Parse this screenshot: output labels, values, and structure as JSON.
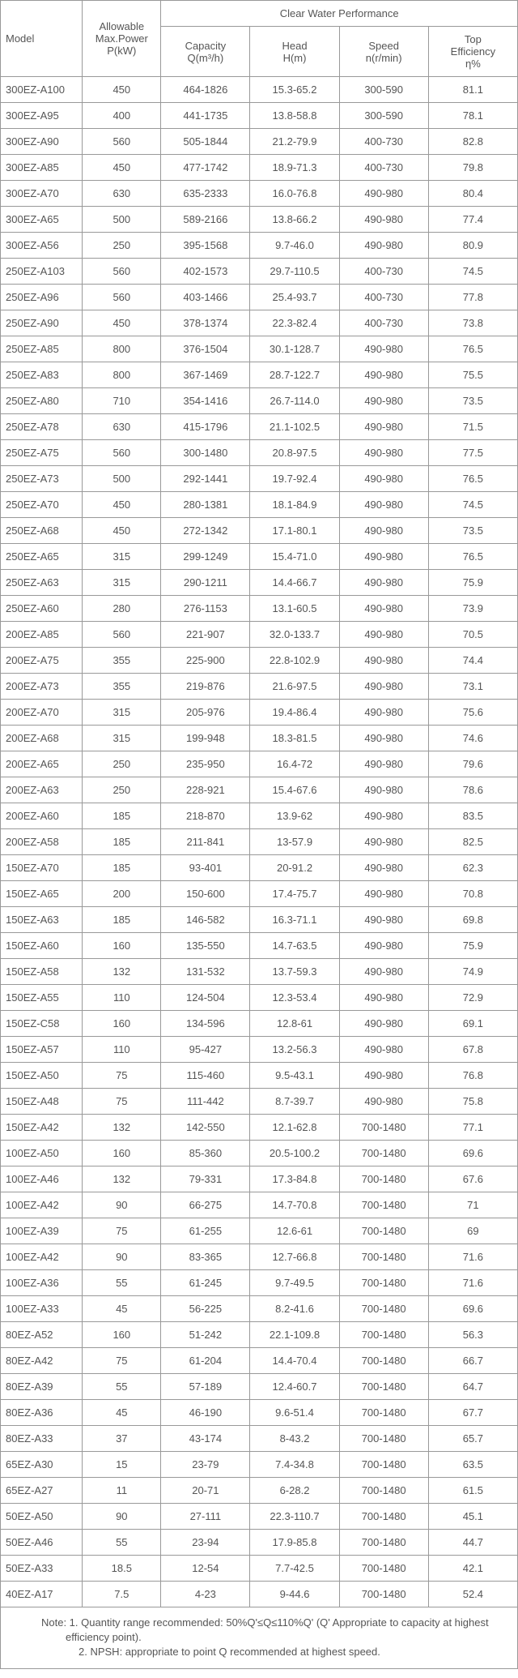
{
  "headers": {
    "model": "Model",
    "allowable": "Allowable\nMax.Power\nP(kW)",
    "perf_group": "Clear Water Performance",
    "capacity": "Capacity\nQ(m³/h)",
    "head": "Head\nH(m)",
    "speed": "Speed\nn(r/min)",
    "eff": "Top\nEfficiency\nη%"
  },
  "rows": [
    [
      "300EZ-A100",
      "450",
      "464-1826",
      "15.3-65.2",
      "300-590",
      "81.1"
    ],
    [
      "300EZ-A95",
      "400",
      "441-1735",
      "13.8-58.8",
      "300-590",
      "78.1"
    ],
    [
      "300EZ-A90",
      "560",
      "505-1844",
      "21.2-79.9",
      "400-730",
      "82.8"
    ],
    [
      "300EZ-A85",
      "450",
      "477-1742",
      "18.9-71.3",
      "400-730",
      "79.8"
    ],
    [
      "300EZ-A70",
      "630",
      "635-2333",
      "16.0-76.8",
      "490-980",
      "80.4"
    ],
    [
      "300EZ-A65",
      "500",
      "589-2166",
      "13.8-66.2",
      "490-980",
      "77.4"
    ],
    [
      "300EZ-A56",
      "250",
      "395-1568",
      "9.7-46.0",
      "490-980",
      "80.9"
    ],
    [
      "250EZ-A103",
      "560",
      "402-1573",
      "29.7-110.5",
      "400-730",
      "74.5"
    ],
    [
      "250EZ-A96",
      "560",
      "403-1466",
      "25.4-93.7",
      "400-730",
      "77.8"
    ],
    [
      "250EZ-A90",
      "450",
      "378-1374",
      "22.3-82.4",
      "400-730",
      "73.8"
    ],
    [
      "250EZ-A85",
      "800",
      "376-1504",
      "30.1-128.7",
      "490-980",
      "76.5"
    ],
    [
      "250EZ-A83",
      "800",
      "367-1469",
      "28.7-122.7",
      "490-980",
      "75.5"
    ],
    [
      "250EZ-A80",
      "710",
      "354-1416",
      "26.7-114.0",
      "490-980",
      "73.5"
    ],
    [
      "250EZ-A78",
      "630",
      "415-1796",
      "21.1-102.5",
      "490-980",
      "71.5"
    ],
    [
      "250EZ-A75",
      "560",
      "300-1480",
      "20.8-97.5",
      "490-980",
      "77.5"
    ],
    [
      "250EZ-A73",
      "500",
      "292-1441",
      "19.7-92.4",
      "490-980",
      "76.5"
    ],
    [
      "250EZ-A70",
      "450",
      "280-1381",
      "18.1-84.9",
      "490-980",
      "74.5"
    ],
    [
      "250EZ-A68",
      "450",
      "272-1342",
      "17.1-80.1",
      "490-980",
      "73.5"
    ],
    [
      "250EZ-A65",
      "315",
      "299-1249",
      "15.4-71.0",
      "490-980",
      "76.5"
    ],
    [
      "250EZ-A63",
      "315",
      "290-1211",
      "14.4-66.7",
      "490-980",
      "75.9"
    ],
    [
      "250EZ-A60",
      "280",
      "276-1153",
      "13.1-60.5",
      "490-980",
      "73.9"
    ],
    [
      "200EZ-A85",
      "560",
      "221-907",
      "32.0-133.7",
      "490-980",
      "70.5"
    ],
    [
      "200EZ-A75",
      "355",
      "225-900",
      "22.8-102.9",
      "490-980",
      "74.4"
    ],
    [
      "200EZ-A73",
      "355",
      "219-876",
      "21.6-97.5",
      "490-980",
      "73.1"
    ],
    [
      "200EZ-A70",
      "315",
      "205-976",
      "19.4-86.4",
      "490-980",
      "75.6"
    ],
    [
      "200EZ-A68",
      "315",
      "199-948",
      "18.3-81.5",
      "490-980",
      "74.6"
    ],
    [
      "200EZ-A65",
      "250",
      "235-950",
      "16.4-72",
      "490-980",
      "79.6"
    ],
    [
      "200EZ-A63",
      "250",
      "228-921",
      "15.4-67.6",
      "490-980",
      "78.6"
    ],
    [
      "200EZ-A60",
      "185",
      "218-870",
      "13.9-62",
      "490-980",
      "83.5"
    ],
    [
      "200EZ-A58",
      "185",
      "211-841",
      "13-57.9",
      "490-980",
      "82.5"
    ],
    [
      "150EZ-A70",
      "185",
      "93-401",
      "20-91.2",
      "490-980",
      "62.3"
    ],
    [
      "150EZ-A65",
      "200",
      "150-600",
      "17.4-75.7",
      "490-980",
      "70.8"
    ],
    [
      "150EZ-A63",
      "185",
      "146-582",
      "16.3-71.1",
      "490-980",
      "69.8"
    ],
    [
      "150EZ-A60",
      "160",
      "135-550",
      "14.7-63.5",
      "490-980",
      "75.9"
    ],
    [
      "150EZ-A58",
      "132",
      "131-532",
      "13.7-59.3",
      "490-980",
      "74.9"
    ],
    [
      "150EZ-A55",
      "110",
      "124-504",
      "12.3-53.4",
      "490-980",
      "72.9"
    ],
    [
      "150EZ-C58",
      "160",
      "134-596",
      "12.8-61",
      "490-980",
      "69.1"
    ],
    [
      "150EZ-A57",
      "110",
      "95-427",
      "13.2-56.3",
      "490-980",
      "67.8"
    ],
    [
      "150EZ-A50",
      "75",
      "115-460",
      "9.5-43.1",
      "490-980",
      "76.8"
    ],
    [
      "150EZ-A48",
      "75",
      "111-442",
      "8.7-39.7",
      "490-980",
      "75.8"
    ],
    [
      "150EZ-A42",
      "132",
      "142-550",
      "12.1-62.8",
      "700-1480",
      "77.1"
    ],
    [
      "100EZ-A50",
      "160",
      "85-360",
      "20.5-100.2",
      "700-1480",
      "69.6"
    ],
    [
      "100EZ-A46",
      "132",
      "79-331",
      "17.3-84.8",
      "700-1480",
      "67.6"
    ],
    [
      "100EZ-A42",
      "90",
      "66-275",
      "14.7-70.8",
      "700-1480",
      "71"
    ],
    [
      "100EZ-A39",
      "75",
      "61-255",
      "12.6-61",
      "700-1480",
      "69"
    ],
    [
      "100EZ-A42",
      "90",
      "83-365",
      "12.7-66.8",
      "700-1480",
      "71.6"
    ],
    [
      "100EZ-A36",
      "55",
      "61-245",
      "9.7-49.5",
      "700-1480",
      "71.6"
    ],
    [
      "100EZ-A33",
      "45",
      "56-225",
      "8.2-41.6",
      "700-1480",
      "69.6"
    ],
    [
      "80EZ-A52",
      "160",
      "51-242",
      "22.1-109.8",
      "700-1480",
      "56.3"
    ],
    [
      "80EZ-A42",
      "75",
      "61-204",
      "14.4-70.4",
      "700-1480",
      "66.7"
    ],
    [
      "80EZ-A39",
      "55",
      "57-189",
      "12.4-60.7",
      "700-1480",
      "64.7"
    ],
    [
      "80EZ-A36",
      "45",
      "46-190",
      "9.6-51.4",
      "700-1480",
      "67.7"
    ],
    [
      "80EZ-A33",
      "37",
      "43-174",
      "8-43.2",
      "700-1480",
      "65.7"
    ],
    [
      "65EZ-A30",
      "15",
      "23-79",
      "7.4-34.8",
      "700-1480",
      "63.5"
    ],
    [
      "65EZ-A27",
      "11",
      "20-71",
      "6-28.2",
      "700-1480",
      "61.5"
    ],
    [
      "50EZ-A50",
      "90",
      "27-111",
      "22.3-110.7",
      "700-1480",
      "45.1"
    ],
    [
      "50EZ-A46",
      "55",
      "23-94",
      "17.9-85.8",
      "700-1480",
      "44.7"
    ],
    [
      "50EZ-A33",
      "18.5",
      "12-54",
      "7.7-42.5",
      "700-1480",
      "42.1"
    ],
    [
      "40EZ-A17",
      "7.5",
      "4-23",
      "9-44.6",
      "700-1480",
      "52.4"
    ]
  ],
  "note": {
    "line1": "Note: 1. Quantity range recommended: 50%Q'≤Q≤110%Q' (Q' Appropriate to capacity at highest efficiency point).",
    "line2": "2. NPSH: appropriate to point Q recommended at highest speed."
  }
}
